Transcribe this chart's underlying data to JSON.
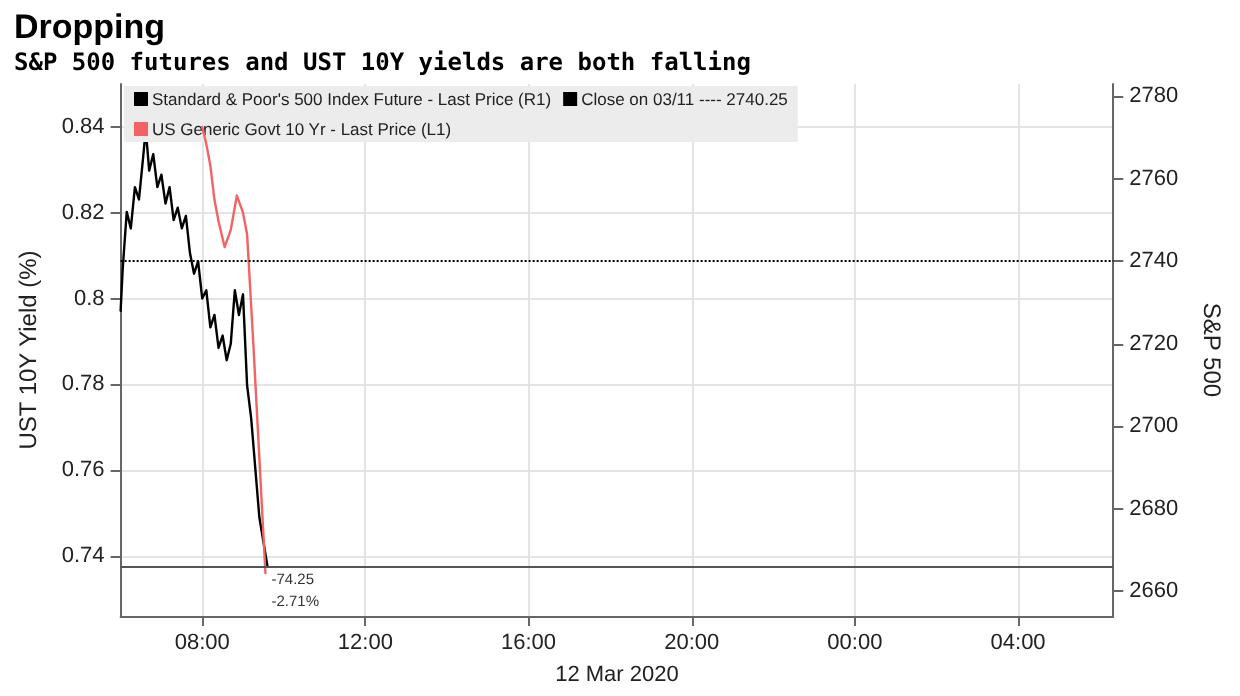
{
  "chart_data": {
    "type": "line",
    "title": "Dropping",
    "subtitle": "S&P 500 futures and UST 10Y yields are both falling",
    "xlabel": "12 Mar 2020",
    "ylabel": "UST 10Y Yield (%)",
    "y2label": "S&P 500",
    "xlim": [
      "2020-03-12T06:00",
      "2020-03-13T06:20"
    ],
    "xticks": [
      {
        "value": "2020-03-12T08:00",
        "label": "08:00"
      },
      {
        "value": "2020-03-12T12:00",
        "label": "12:00"
      },
      {
        "value": "2020-03-12T16:00",
        "label": "16:00"
      },
      {
        "value": "2020-03-12T20:00",
        "label": "20:00"
      },
      {
        "value": "2020-03-13T00:00",
        "label": "00:00"
      },
      {
        "value": "2020-03-13T04:00",
        "label": "04:00"
      }
    ],
    "ylim": [
      0.726,
      0.85
    ],
    "yticks": [
      0.74,
      0.76,
      0.78,
      0.8,
      0.82,
      0.84
    ],
    "y2lim": [
      2654,
      2783
    ],
    "y2ticks": [
      2660,
      2680,
      2700,
      2720,
      2740,
      2760,
      2780
    ],
    "series": [
      {
        "name": "Standard & Poor's 500 Index Future - Last Price (R1)",
        "color": "#000000",
        "axis": "y2",
        "x": [
          "2020-03-12T06:00",
          "2020-03-12T06:03",
          "2020-03-12T06:09",
          "2020-03-12T06:15",
          "2020-03-12T06:21",
          "2020-03-12T06:27",
          "2020-03-12T06:33",
          "2020-03-12T06:37",
          "2020-03-12T06:42",
          "2020-03-12T06:48",
          "2020-03-12T06:54",
          "2020-03-12T07:00",
          "2020-03-12T07:06",
          "2020-03-12T07:12",
          "2020-03-12T07:18",
          "2020-03-12T07:24",
          "2020-03-12T07:30",
          "2020-03-12T07:36",
          "2020-03-12T07:42",
          "2020-03-12T07:48",
          "2020-03-12T07:54",
          "2020-03-12T08:00",
          "2020-03-12T08:06",
          "2020-03-12T08:12",
          "2020-03-12T08:18",
          "2020-03-12T08:24",
          "2020-03-12T08:30",
          "2020-03-12T08:36",
          "2020-03-12T08:42",
          "2020-03-12T08:48",
          "2020-03-12T08:54",
          "2020-03-12T09:00",
          "2020-03-12T09:06",
          "2020-03-12T09:12",
          "2020-03-12T09:18",
          "2020-03-12T09:24",
          "2020-03-12T09:30",
          "2020-03-12T09:36"
        ],
        "values": [
          2728,
          2738,
          2752,
          2748,
          2758,
          2755,
          2765,
          2772,
          2762,
          2766,
          2758,
          2761,
          2754,
          2758,
          2750,
          2753,
          2748,
          2751,
          2742,
          2737,
          2740,
          2731,
          2733,
          2724,
          2727,
          2719,
          2722,
          2716,
          2720,
          2733,
          2727,
          2732,
          2710,
          2702,
          2690,
          2678,
          2672,
          2666
        ]
      },
      {
        "name": "US Generic Govt 10 Yr - Last Price (L1)",
        "color": "#f26363",
        "x": [
          "2020-03-12T08:00",
          "2020-03-12T08:06",
          "2020-03-12T08:12",
          "2020-03-12T08:18",
          "2020-03-12T08:24",
          "2020-03-12T08:33",
          "2020-03-12T08:42",
          "2020-03-12T08:51",
          "2020-03-12T09:00",
          "2020-03-12T09:06",
          "2020-03-12T09:15",
          "2020-03-12T09:21",
          "2020-03-12T09:27",
          "2020-03-12T09:33"
        ],
        "values": [
          0.84,
          0.836,
          0.831,
          0.823,
          0.818,
          0.812,
          0.816,
          0.824,
          0.82,
          0.815,
          0.79,
          0.772,
          0.754,
          0.736
        ]
      }
    ],
    "ref_lines": [
      {
        "axis": "y2",
        "value": 2740.25,
        "label": "Close on 03/11 ---- 2740.25",
        "color": "#000000",
        "line_style": "dotted"
      },
      {
        "axis": "y2",
        "value": 2666,
        "color": "#555555",
        "line_style": "solid"
      }
    ],
    "annotations": [
      "-74.25",
      "-2.71%"
    ],
    "grid": true,
    "legend": "top left",
    "marker": "none",
    "line_style": "solid"
  }
}
